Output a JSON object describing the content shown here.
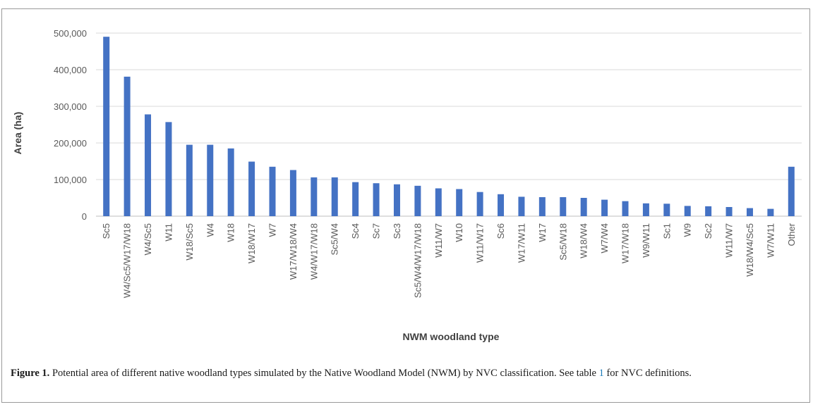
{
  "caption": {
    "label": "Figure 1.",
    "text_a": " Potential area of different native woodland types simulated by the Native Woodland Model (NWM) by NVC classification. See table ",
    "ref": "1",
    "text_b": " for NVC definitions."
  },
  "chart_data": {
    "type": "bar",
    "title": "",
    "xlabel": "NWM woodland type",
    "ylabel": "Area (ha)",
    "ylim": [
      0,
      500000
    ],
    "yticks": [
      0,
      100000,
      200000,
      300000,
      400000,
      500000
    ],
    "ytick_labels": [
      "0",
      "100,000",
      "200,000",
      "300,000",
      "400,000",
      "500,000"
    ],
    "grid": true,
    "bar_color": "#4472c4",
    "categories": [
      "Sc5",
      "W4/Sc5/W17/W18",
      "W4/Sc5",
      "W11",
      "W18/Sc5",
      "W4",
      "W18",
      "W18/W17",
      "W7",
      "W17/W18/W4",
      "W4/W17/W18",
      "Sc5/W4",
      "Sc4",
      "Sc7",
      "Sc3",
      "Sc5/W4/W17/W18",
      "W11/W7",
      "W10",
      "W11/W17",
      "Sc6",
      "W17/W11",
      "W17",
      "Sc5/W18",
      "W18/W4",
      "W7/W4",
      "W17/W18",
      "W9/W11",
      "Sc1",
      "W9",
      "Sc2",
      "W11/W7",
      "W18/W4/Sc5",
      "W7/W11",
      "Other"
    ],
    "values": [
      490000,
      381000,
      278000,
      257000,
      195000,
      195000,
      185000,
      149000,
      135000,
      126000,
      106000,
      106000,
      93000,
      90000,
      87000,
      83000,
      76000,
      74000,
      66000,
      60000,
      53000,
      52000,
      52000,
      50000,
      45000,
      41000,
      35000,
      34000,
      28000,
      27000,
      25000,
      22000,
      20000,
      135000
    ]
  }
}
